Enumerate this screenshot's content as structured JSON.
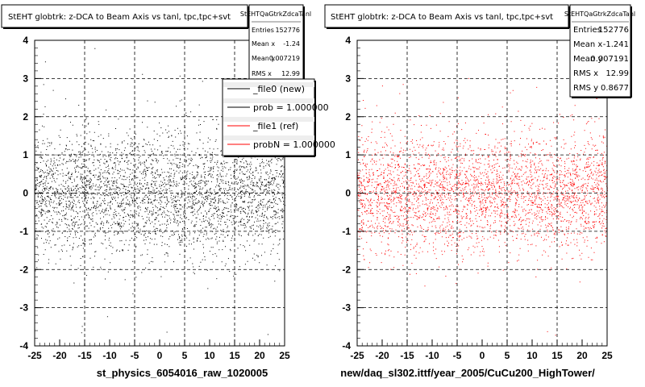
{
  "chart_data": [
    {
      "type": "scatter",
      "title": "StEHT globtrk: z-DCA to Beam Axis vs tanl, tpc,tpc+svt",
      "xlabel": "st_physics_6054016_raw_1020005",
      "xlim": [
        -25,
        25
      ],
      "ylim": [
        -4,
        4
      ],
      "x_ticks": [
        "-25",
        "-20",
        "-15",
        "-10",
        "-5",
        "0",
        "5",
        "10",
        "15",
        "20",
        "25"
      ],
      "y_ticks": [
        "-4",
        "-3",
        "-2",
        "-1",
        "0",
        "1",
        "2",
        "3",
        "4"
      ],
      "grid": true,
      "marker_color": "#000000",
      "stats": {
        "title": "StEHTQaGtrkZdcaTanl",
        "rows": [
          {
            "label": "Entries",
            "value": "152776"
          },
          {
            "label": "Mean x",
            "value": "-1.24"
          },
          {
            "label": "Mean y",
            "value": "0.007219"
          },
          {
            "label": "RMS x",
            "value": "12.99"
          }
        ]
      },
      "legend": [
        {
          "label": "_file0 (new)",
          "color": "#000000"
        },
        {
          "label": "prob = 1.000000",
          "color": "#000000"
        },
        {
          "label": "_file1 (ref)",
          "color": "#ff0000"
        },
        {
          "label": "probN = 1.000000",
          "color": "#ff0000"
        }
      ]
    },
    {
      "type": "scatter",
      "title": "StEHT globtrk: z-DCA to Beam Axis vs tanl, tpc,tpc+svt",
      "xlabel": "new/daq_sl302.ittf/year_2005/CuCu200_HighTower/",
      "xlim": [
        -25,
        25
      ],
      "ylim": [
        -4,
        4
      ],
      "x_ticks": [
        "-25",
        "-20",
        "-15",
        "-10",
        "-5",
        "0",
        "5",
        "10",
        "15",
        "20",
        "25"
      ],
      "y_ticks": [
        "-4",
        "-3",
        "-2",
        "-1",
        "0",
        "1",
        "2",
        "3",
        "4"
      ],
      "grid": true,
      "marker_color": "#ff0000",
      "stats": {
        "title": "StEHTQaGtrkZdcaTanl",
        "rows": [
          {
            "label": "Entries",
            "value": "152776"
          },
          {
            "label": "Mean x",
            "value": "-1.241"
          },
          {
            "label": "Mean y",
            "value": "0.007191"
          },
          {
            "label": "RMS x",
            "value": "12.99"
          },
          {
            "label": "RMS y",
            "value": "0.8677"
          }
        ]
      }
    }
  ]
}
